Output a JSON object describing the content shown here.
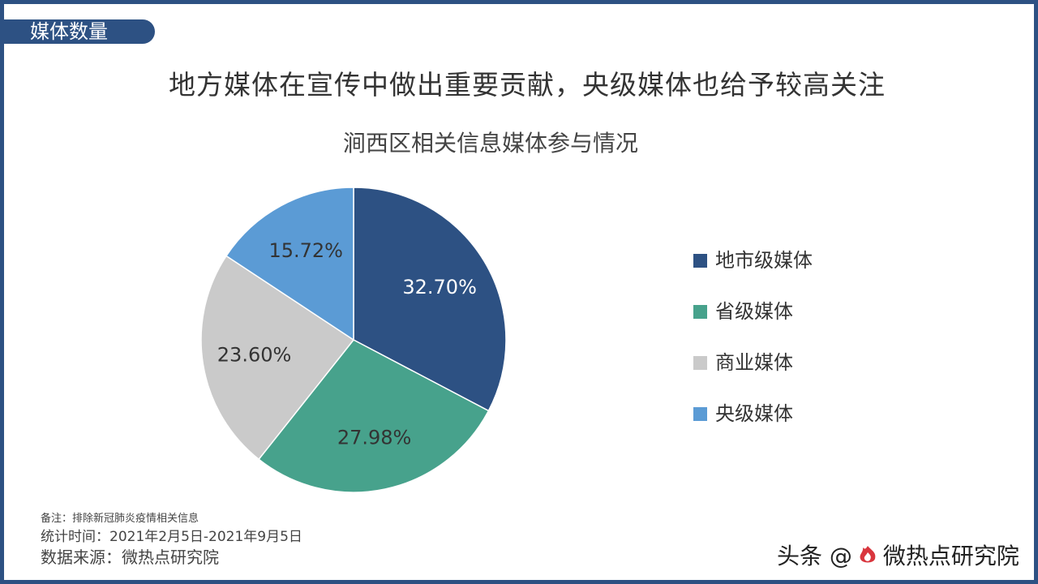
{
  "section_tag": "媒体数量",
  "headline": "地方媒体在宣传中做出重要贡献，央级媒体也给予较高关注",
  "chart_data": {
    "type": "pie",
    "title": "涧西区相关信息媒体参与情况",
    "categories": [
      "地市级媒体",
      "省级媒体",
      "商业媒体",
      "央级媒体"
    ],
    "values": [
      32.7,
      27.98,
      23.6,
      15.72
    ],
    "data_labels": [
      "32.70%",
      "27.98%",
      "23.60%",
      "15.72%"
    ],
    "colors": [
      "#2d5183",
      "#47a28c",
      "#cacaca",
      "#5b9bd5"
    ],
    "label_colors": [
      "#ffffff",
      "#333333",
      "#333333",
      "#333333"
    ],
    "legend_position": "right"
  },
  "legend": {
    "items": [
      {
        "label": "地市级媒体",
        "color": "#2d5183"
      },
      {
        "label": "省级媒体",
        "color": "#47a28c"
      },
      {
        "label": "商业媒体",
        "color": "#cacaca"
      },
      {
        "label": "央级媒体",
        "color": "#5b9bd5"
      }
    ]
  },
  "notes": {
    "remark": "备注：排除新冠肺炎疫情相关信息",
    "period": "统计时间：2021年2月5日-2021年9月5日",
    "source": "数据来源：微热点研究院"
  },
  "watermark": {
    "prefix": "头条 @",
    "name": "微热点研究院",
    "logo_icon": "flame-logo-icon"
  }
}
